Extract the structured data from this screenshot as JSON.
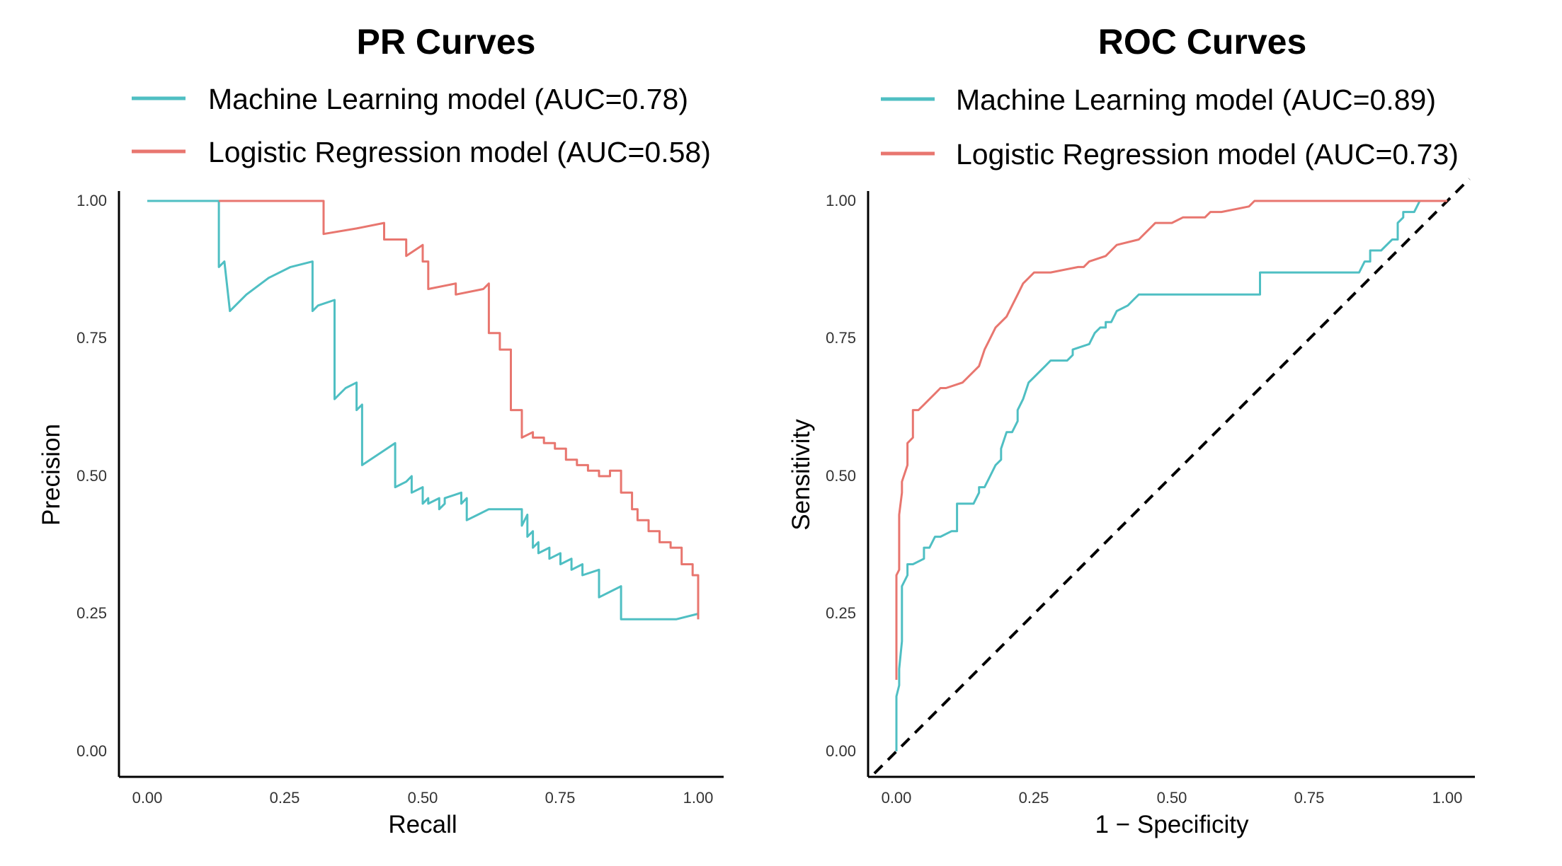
{
  "chart_data": [
    {
      "type": "line",
      "title": "PR Curves",
      "xlabel": "Recall",
      "ylabel": "Precision",
      "xlim": [
        0,
        1
      ],
      "ylim": [
        0,
        1
      ],
      "xticks": [
        "0.00",
        "0.25",
        "0.50",
        "0.75",
        "1.00"
      ],
      "yticks": [
        "0.00",
        "0.25",
        "0.50",
        "0.75",
        "1.00"
      ],
      "grid": false,
      "legend_position": "top",
      "series": [
        {
          "name": "Machine Learning model (AUC=0.78)",
          "color": "#4FBFC3",
          "x": [
            0.0,
            0.13,
            0.13,
            0.14,
            0.15,
            0.15,
            0.18,
            0.22,
            0.26,
            0.3,
            0.3,
            0.31,
            0.34,
            0.34,
            0.36,
            0.38,
            0.38,
            0.39,
            0.39,
            0.45,
            0.45,
            0.47,
            0.47,
            0.48,
            0.48,
            0.5,
            0.5,
            0.51,
            0.51,
            0.53,
            0.53,
            0.54,
            0.54,
            0.57,
            0.57,
            0.58,
            0.58,
            0.6,
            0.62,
            0.64,
            0.66,
            0.68,
            0.68,
            0.69,
            0.69,
            0.7,
            0.7,
            0.71,
            0.71,
            0.73,
            0.73,
            0.75,
            0.75,
            0.77,
            0.77,
            0.79,
            0.79,
            0.82,
            0.82,
            0.86,
            0.86,
            0.88,
            0.88,
            0.9,
            0.92,
            0.96,
            1.0,
            1.0
          ],
          "y": [
            1.0,
            1.0,
            0.88,
            0.89,
            0.8,
            0.8,
            0.83,
            0.86,
            0.88,
            0.89,
            0.8,
            0.81,
            0.82,
            0.64,
            0.66,
            0.67,
            0.62,
            0.63,
            0.52,
            0.56,
            0.48,
            0.49,
            0.49,
            0.5,
            0.47,
            0.48,
            0.45,
            0.46,
            0.45,
            0.46,
            0.44,
            0.45,
            0.46,
            0.47,
            0.45,
            0.46,
            0.42,
            0.43,
            0.44,
            0.44,
            0.44,
            0.44,
            0.41,
            0.43,
            0.39,
            0.4,
            0.37,
            0.38,
            0.36,
            0.37,
            0.35,
            0.36,
            0.34,
            0.35,
            0.33,
            0.34,
            0.32,
            0.33,
            0.28,
            0.3,
            0.24,
            0.24,
            0.24,
            0.24,
            0.24,
            0.24,
            0.25,
            0.24
          ]
        },
        {
          "name": "Logistic Regression model (AUC=0.58)",
          "color": "#E8766F",
          "x": [
            0.13,
            0.32,
            0.32,
            0.38,
            0.43,
            0.43,
            0.47,
            0.47,
            0.5,
            0.5,
            0.51,
            0.51,
            0.56,
            0.56,
            0.61,
            0.62,
            0.62,
            0.64,
            0.64,
            0.66,
            0.66,
            0.68,
            0.68,
            0.7,
            0.7,
            0.72,
            0.72,
            0.74,
            0.74,
            0.76,
            0.76,
            0.78,
            0.78,
            0.8,
            0.8,
            0.82,
            0.82,
            0.84,
            0.84,
            0.86,
            0.86,
            0.88,
            0.88,
            0.89,
            0.89,
            0.91,
            0.91,
            0.93,
            0.93,
            0.95,
            0.95,
            0.97,
            0.97,
            0.99,
            0.99,
            1.0,
            1.0
          ],
          "y": [
            1.0,
            1.0,
            0.94,
            0.95,
            0.96,
            0.93,
            0.93,
            0.9,
            0.92,
            0.89,
            0.89,
            0.84,
            0.85,
            0.83,
            0.84,
            0.85,
            0.76,
            0.76,
            0.73,
            0.73,
            0.62,
            0.62,
            0.57,
            0.58,
            0.57,
            0.57,
            0.56,
            0.56,
            0.55,
            0.55,
            0.53,
            0.53,
            0.52,
            0.52,
            0.51,
            0.51,
            0.5,
            0.5,
            0.51,
            0.51,
            0.47,
            0.47,
            0.44,
            0.44,
            0.42,
            0.42,
            0.4,
            0.4,
            0.38,
            0.38,
            0.37,
            0.37,
            0.34,
            0.34,
            0.32,
            0.32,
            0.24
          ]
        }
      ]
    },
    {
      "type": "line",
      "title": "ROC Curves",
      "xlabel": "1 − Specificity",
      "ylabel": "Sensitivity",
      "xlim": [
        0,
        1
      ],
      "ylim": [
        0,
        1
      ],
      "xticks": [
        "0.00",
        "0.25",
        "0.50",
        "0.75",
        "1.00"
      ],
      "yticks": [
        "0.00",
        "0.25",
        "0.50",
        "0.75",
        "1.00"
      ],
      "grid": false,
      "legend_position": "top",
      "reference_line": {
        "x": [
          -0.04,
          1.04
        ],
        "y": [
          -0.04,
          1.04
        ],
        "style": "dashed",
        "color": "#000000"
      },
      "series": [
        {
          "name": "Machine Learning model (AUC=0.89)",
          "color": "#4FBFC3",
          "x": [
            0.0,
            0.0,
            0.005,
            0.005,
            0.01,
            0.01,
            0.02,
            0.02,
            0.03,
            0.05,
            0.05,
            0.06,
            0.07,
            0.08,
            0.1,
            0.11,
            0.11,
            0.14,
            0.15,
            0.15,
            0.16,
            0.17,
            0.17,
            0.18,
            0.19,
            0.19,
            0.2,
            0.21,
            0.21,
            0.22,
            0.22,
            0.23,
            0.24,
            0.25,
            0.26,
            0.27,
            0.28,
            0.28,
            0.31,
            0.32,
            0.32,
            0.35,
            0.36,
            0.37,
            0.38,
            0.38,
            0.39,
            0.4,
            0.4,
            0.42,
            0.43,
            0.44,
            0.44,
            0.46,
            0.48,
            0.49,
            0.49,
            0.52,
            0.54,
            0.54,
            0.58,
            0.62,
            0.66,
            0.66,
            0.7,
            0.75,
            0.8,
            0.84,
            0.85,
            0.86,
            0.86,
            0.88,
            0.9,
            0.91,
            0.91,
            0.92,
            0.92,
            0.94,
            0.95,
            0.95,
            0.97,
            1.0
          ],
          "y": [
            0.0,
            0.1,
            0.12,
            0.15,
            0.2,
            0.3,
            0.32,
            0.34,
            0.34,
            0.35,
            0.37,
            0.37,
            0.39,
            0.39,
            0.4,
            0.4,
            0.45,
            0.45,
            0.47,
            0.48,
            0.48,
            0.5,
            0.5,
            0.52,
            0.53,
            0.55,
            0.58,
            0.58,
            0.58,
            0.6,
            0.62,
            0.64,
            0.67,
            0.68,
            0.69,
            0.7,
            0.71,
            0.71,
            0.71,
            0.72,
            0.73,
            0.74,
            0.76,
            0.77,
            0.77,
            0.78,
            0.78,
            0.8,
            0.8,
            0.81,
            0.82,
            0.83,
            0.83,
            0.83,
            0.83,
            0.83,
            0.83,
            0.83,
            0.83,
            0.83,
            0.83,
            0.83,
            0.83,
            0.87,
            0.87,
            0.87,
            0.87,
            0.87,
            0.89,
            0.89,
            0.91,
            0.91,
            0.93,
            0.93,
            0.96,
            0.97,
            0.98,
            0.98,
            1.0,
            1.0,
            1.0,
            1.0
          ]
        },
        {
          "name": "Logistic Regression model (AUC=0.73)",
          "color": "#E8766F",
          "x": [
            0.0,
            0.0,
            0.005,
            0.005,
            0.01,
            0.01,
            0.02,
            0.02,
            0.03,
            0.03,
            0.04,
            0.05,
            0.06,
            0.07,
            0.08,
            0.09,
            0.09,
            0.12,
            0.13,
            0.13,
            0.15,
            0.16,
            0.17,
            0.18,
            0.19,
            0.2,
            0.21,
            0.22,
            0.23,
            0.24,
            0.25,
            0.27,
            0.28,
            0.33,
            0.34,
            0.35,
            0.38,
            0.39,
            0.4,
            0.44,
            0.45,
            0.46,
            0.47,
            0.5,
            0.52,
            0.56,
            0.57,
            0.58,
            0.59,
            0.64,
            0.65,
            0.7,
            0.78,
            0.86,
            0.94,
            1.0
          ],
          "y": [
            0.13,
            0.32,
            0.33,
            0.43,
            0.47,
            0.49,
            0.52,
            0.56,
            0.57,
            0.62,
            0.62,
            0.63,
            0.64,
            0.65,
            0.66,
            0.66,
            0.66,
            0.67,
            0.68,
            0.68,
            0.7,
            0.73,
            0.75,
            0.77,
            0.78,
            0.79,
            0.81,
            0.83,
            0.85,
            0.86,
            0.87,
            0.87,
            0.87,
            0.88,
            0.88,
            0.89,
            0.9,
            0.91,
            0.92,
            0.93,
            0.94,
            0.95,
            0.96,
            0.96,
            0.97,
            0.97,
            0.98,
            0.98,
            0.98,
            0.99,
            1.0,
            1.0,
            1.0,
            1.0,
            1.0,
            1.0
          ]
        }
      ]
    }
  ]
}
